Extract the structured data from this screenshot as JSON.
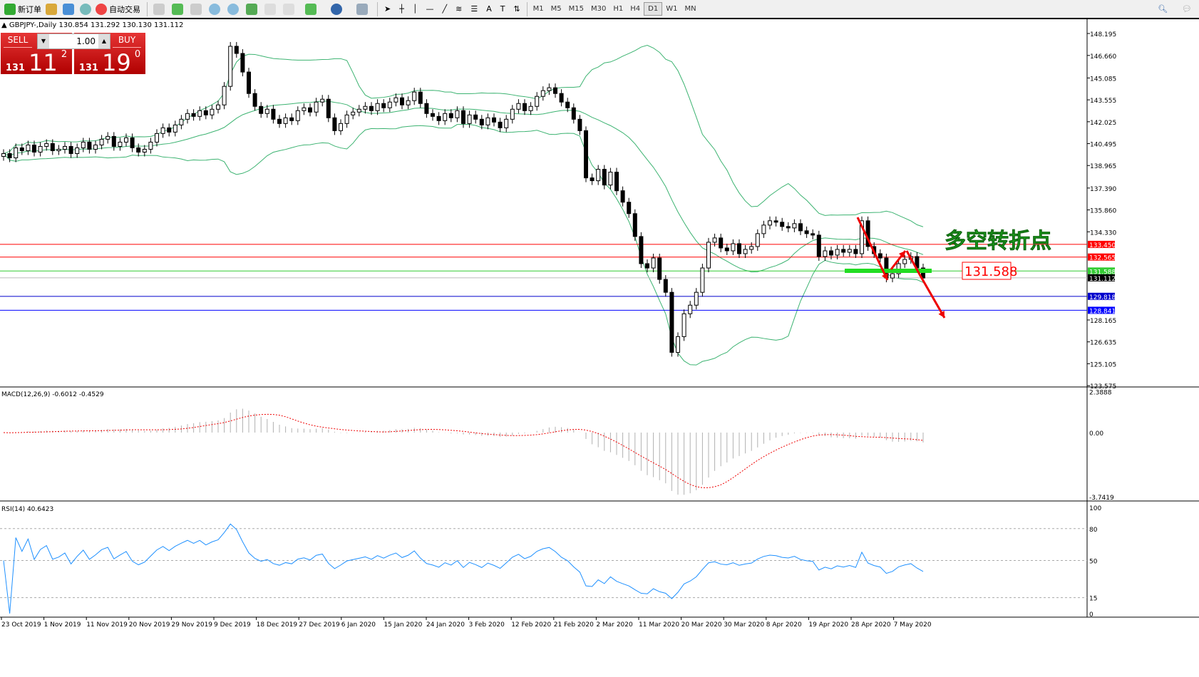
{
  "toolbar": {
    "new_order": "新订单",
    "auto_trading": "自动交易",
    "timeframes": [
      "M1",
      "M5",
      "M15",
      "M30",
      "H1",
      "H4",
      "D1",
      "W1",
      "MN"
    ],
    "active_timeframe": "D1"
  },
  "chart": {
    "symbol_line": "GBPJPY-,Daily  130.854 131.292 130.130 131.112"
  },
  "trade_panel": {
    "sell_label": "SELL",
    "buy_label": "BUY",
    "lot": "1.00",
    "sell_big": "131",
    "sell_main": "11",
    "sell_sup": "2",
    "buy_big": "131",
    "buy_main": "19",
    "buy_sup": "0"
  },
  "price_axis": [
    "148.195",
    "146.660",
    "145.085",
    "143.555",
    "142.025",
    "140.495",
    "138.965",
    "137.390",
    "135.860",
    "134.330",
    "128.165",
    "126.635",
    "125.105",
    "123.575"
  ],
  "levels": [
    {
      "price": 133.45,
      "label": "133.450",
      "color": "#ff0000"
    },
    {
      "price": 132.565,
      "label": "132.565",
      "color": "#ff0000"
    },
    {
      "price": 131.588,
      "label": "131.588",
      "color": "#33cc33"
    },
    {
      "price": 131.112,
      "label": "131.112",
      "color": "#000000",
      "line": "#bbbbbb"
    },
    {
      "price": 129.818,
      "label": "129.818",
      "color": "#0000cc"
    },
    {
      "price": 128.841,
      "label": "128.841",
      "color": "#0000ff"
    }
  ],
  "annotations": {
    "turning_point": "多空转折点",
    "level_box": "131.588"
  },
  "macd": {
    "label": "MACD(12,26,9) -0.6012 -0.4529",
    "axis": [
      "2.3888",
      "0.00",
      "-3.7419"
    ]
  },
  "rsi": {
    "label": "RSI(14) 40.6423",
    "axis": [
      "100",
      "80",
      "50",
      "15",
      "0"
    ]
  },
  "dates": [
    "23 Oct 2019",
    "1 Nov 2019",
    "11 Nov 2019",
    "20 Nov 2019",
    "29 Nov 2019",
    "9 Dec 2019",
    "18 Dec 2019",
    "27 Dec 2019",
    "6 Jan 2020",
    "15 Jan 2020",
    "24 Jan 2020",
    "3 Feb 2020",
    "12 Feb 2020",
    "21 Feb 2020",
    "2 Mar 2020",
    "11 Mar 2020",
    "20 Mar 2020",
    "30 Mar 2020",
    "8 Apr 2020",
    "19 Apr 2020",
    "28 Apr 2020",
    "7 May 2020"
  ],
  "closes": [
    139.8,
    139.5,
    140.2,
    140.0,
    140.4,
    139.9,
    140.3,
    140.5,
    140.0,
    140.1,
    140.3,
    139.8,
    140.2,
    140.6,
    140.1,
    140.4,
    140.8,
    141.0,
    140.3,
    140.6,
    140.9,
    140.2,
    139.9,
    140.1,
    140.6,
    141.2,
    141.6,
    141.3,
    141.8,
    142.2,
    142.6,
    142.4,
    142.8,
    142.5,
    142.9,
    143.2,
    144.5,
    147.3,
    146.8,
    145.5,
    144.0,
    143.1,
    142.6,
    142.9,
    142.2,
    141.9,
    142.3,
    142.1,
    142.8,
    143.0,
    142.7,
    143.4,
    143.6,
    142.3,
    141.4,
    141.9,
    142.5,
    142.7,
    142.9,
    143.1,
    142.8,
    143.3,
    143.0,
    143.4,
    143.7,
    143.2,
    143.5,
    144.1,
    143.3,
    142.6,
    142.4,
    142.1,
    142.6,
    142.3,
    142.8,
    141.9,
    142.5,
    142.2,
    141.8,
    142.3,
    142.0,
    141.6,
    142.2,
    142.9,
    143.3,
    142.8,
    143.1,
    143.8,
    144.2,
    144.4,
    144.0,
    143.4,
    143.0,
    142.2,
    141.4,
    138.1,
    137.9,
    138.7,
    137.6,
    138.5,
    137.2,
    136.4,
    135.6,
    134.0,
    132.1,
    131.8,
    132.5,
    131.0,
    130.1,
    125.9,
    127.0,
    128.6,
    129.2,
    130.1,
    131.8,
    133.6,
    133.9,
    133.2,
    133.0,
    133.5,
    132.8,
    133.1,
    133.3,
    134.2,
    134.8,
    135.1,
    135.0,
    134.7,
    134.6,
    134.9,
    134.4,
    134.2,
    134.1,
    132.6,
    133.0,
    132.7,
    133.1,
    132.9,
    133.1,
    132.8,
    135.1,
    133.3,
    132.8,
    132.5,
    131.1,
    131.4,
    132.1,
    132.4,
    132.6,
    131.8,
    131.1
  ]
}
